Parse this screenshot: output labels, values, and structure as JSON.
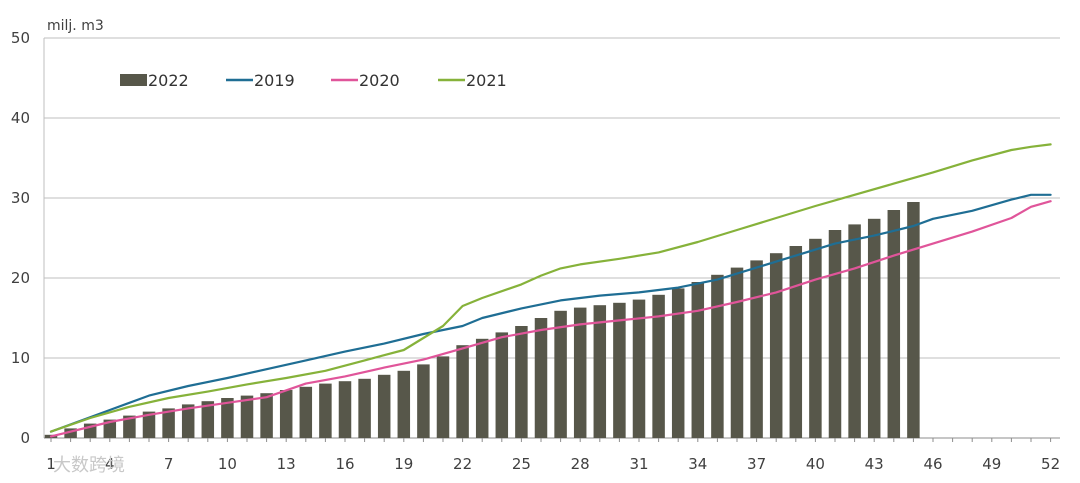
{
  "chart_data": {
    "type": "bar",
    "ylabel": "milj. m3",
    "ylim": [
      0,
      50
    ],
    "yticks": [
      0,
      10,
      20,
      30,
      40,
      50
    ],
    "xlim": [
      1,
      52
    ],
    "xticks": [
      1,
      4,
      7,
      10,
      13,
      16,
      19,
      22,
      25,
      28,
      31,
      34,
      37,
      40,
      43,
      46,
      49,
      52
    ],
    "grid": true,
    "legend_position": "top-left",
    "colors": {
      "2022": "#57574a",
      "2019": "#1f6e94",
      "2020": "#e0559a",
      "2021": "#86b23a"
    },
    "series": [
      {
        "name": "2022",
        "type": "bar",
        "x": [
          1,
          2,
          3,
          4,
          5,
          6,
          7,
          8,
          9,
          10,
          11,
          12,
          13,
          14,
          15,
          16,
          17,
          18,
          19,
          20,
          21,
          22,
          23,
          24,
          25,
          26,
          27,
          28,
          29,
          30,
          31,
          32,
          33,
          34,
          35,
          36,
          37,
          38,
          39,
          40,
          41,
          42,
          43,
          44,
          45
        ],
        "values": [
          0.4,
          1.2,
          1.8,
          2.3,
          2.8,
          3.3,
          3.7,
          4.2,
          4.6,
          5.0,
          5.3,
          5.6,
          6.0,
          6.4,
          6.8,
          7.1,
          7.4,
          7.9,
          8.4,
          9.2,
          10.2,
          11.6,
          12.4,
          13.2,
          14.0,
          15.0,
          15.9,
          16.3,
          16.6,
          16.9,
          17.3,
          17.9,
          18.7,
          19.5,
          20.4,
          21.3,
          22.2,
          23.1,
          24.0,
          24.9,
          26.0,
          26.7,
          27.4,
          28.5,
          29.5
        ]
      },
      {
        "name": "2019",
        "type": "line",
        "x": [
          1,
          4,
          6,
          8,
          10,
          12,
          14,
          16,
          18,
          20,
          22,
          23,
          25,
          27,
          29,
          31,
          33,
          35,
          37,
          39,
          41,
          43,
          45,
          46,
          48,
          50,
          51,
          52
        ],
        "values": [
          0.8,
          3.5,
          5.3,
          6.5,
          7.5,
          8.6,
          9.7,
          10.8,
          11.8,
          13.0,
          14.0,
          15.0,
          16.2,
          17.2,
          17.8,
          18.2,
          18.8,
          19.8,
          21.3,
          22.8,
          24.3,
          25.3,
          26.5,
          27.4,
          28.4,
          29.8,
          30.4,
          30.4
        ]
      },
      {
        "name": "2020",
        "type": "line",
        "x": [
          1,
          4,
          6,
          8,
          10,
          12,
          14,
          16,
          18,
          20,
          22,
          24,
          26,
          28,
          30,
          32,
          34,
          36,
          38,
          40,
          42,
          44,
          46,
          48,
          50,
          51,
          52
        ],
        "values": [
          0.2,
          2.0,
          2.9,
          3.7,
          4.4,
          5.1,
          6.8,
          7.7,
          8.8,
          9.8,
          11.2,
          12.6,
          13.5,
          14.2,
          14.7,
          15.2,
          15.9,
          17.0,
          18.2,
          19.8,
          21.2,
          22.8,
          24.3,
          25.8,
          27.5,
          28.9,
          29.6
        ]
      },
      {
        "name": "2021",
        "type": "line",
        "x": [
          1,
          3,
          5,
          7,
          9,
          11,
          13,
          15,
          17,
          19,
          21,
          22,
          23,
          25,
          26,
          27,
          28,
          30,
          32,
          34,
          36,
          38,
          40,
          42,
          44,
          46,
          48,
          50,
          51,
          52
        ],
        "values": [
          0.8,
          2.5,
          3.9,
          5.0,
          5.8,
          6.7,
          7.5,
          8.4,
          9.7,
          11.0,
          14.0,
          16.5,
          17.5,
          19.2,
          20.3,
          21.2,
          21.7,
          22.4,
          23.2,
          24.5,
          26.0,
          27.5,
          29.0,
          30.4,
          31.8,
          33.2,
          34.7,
          36.0,
          36.4,
          36.7
        ]
      }
    ]
  },
  "watermark": "大数跨境"
}
